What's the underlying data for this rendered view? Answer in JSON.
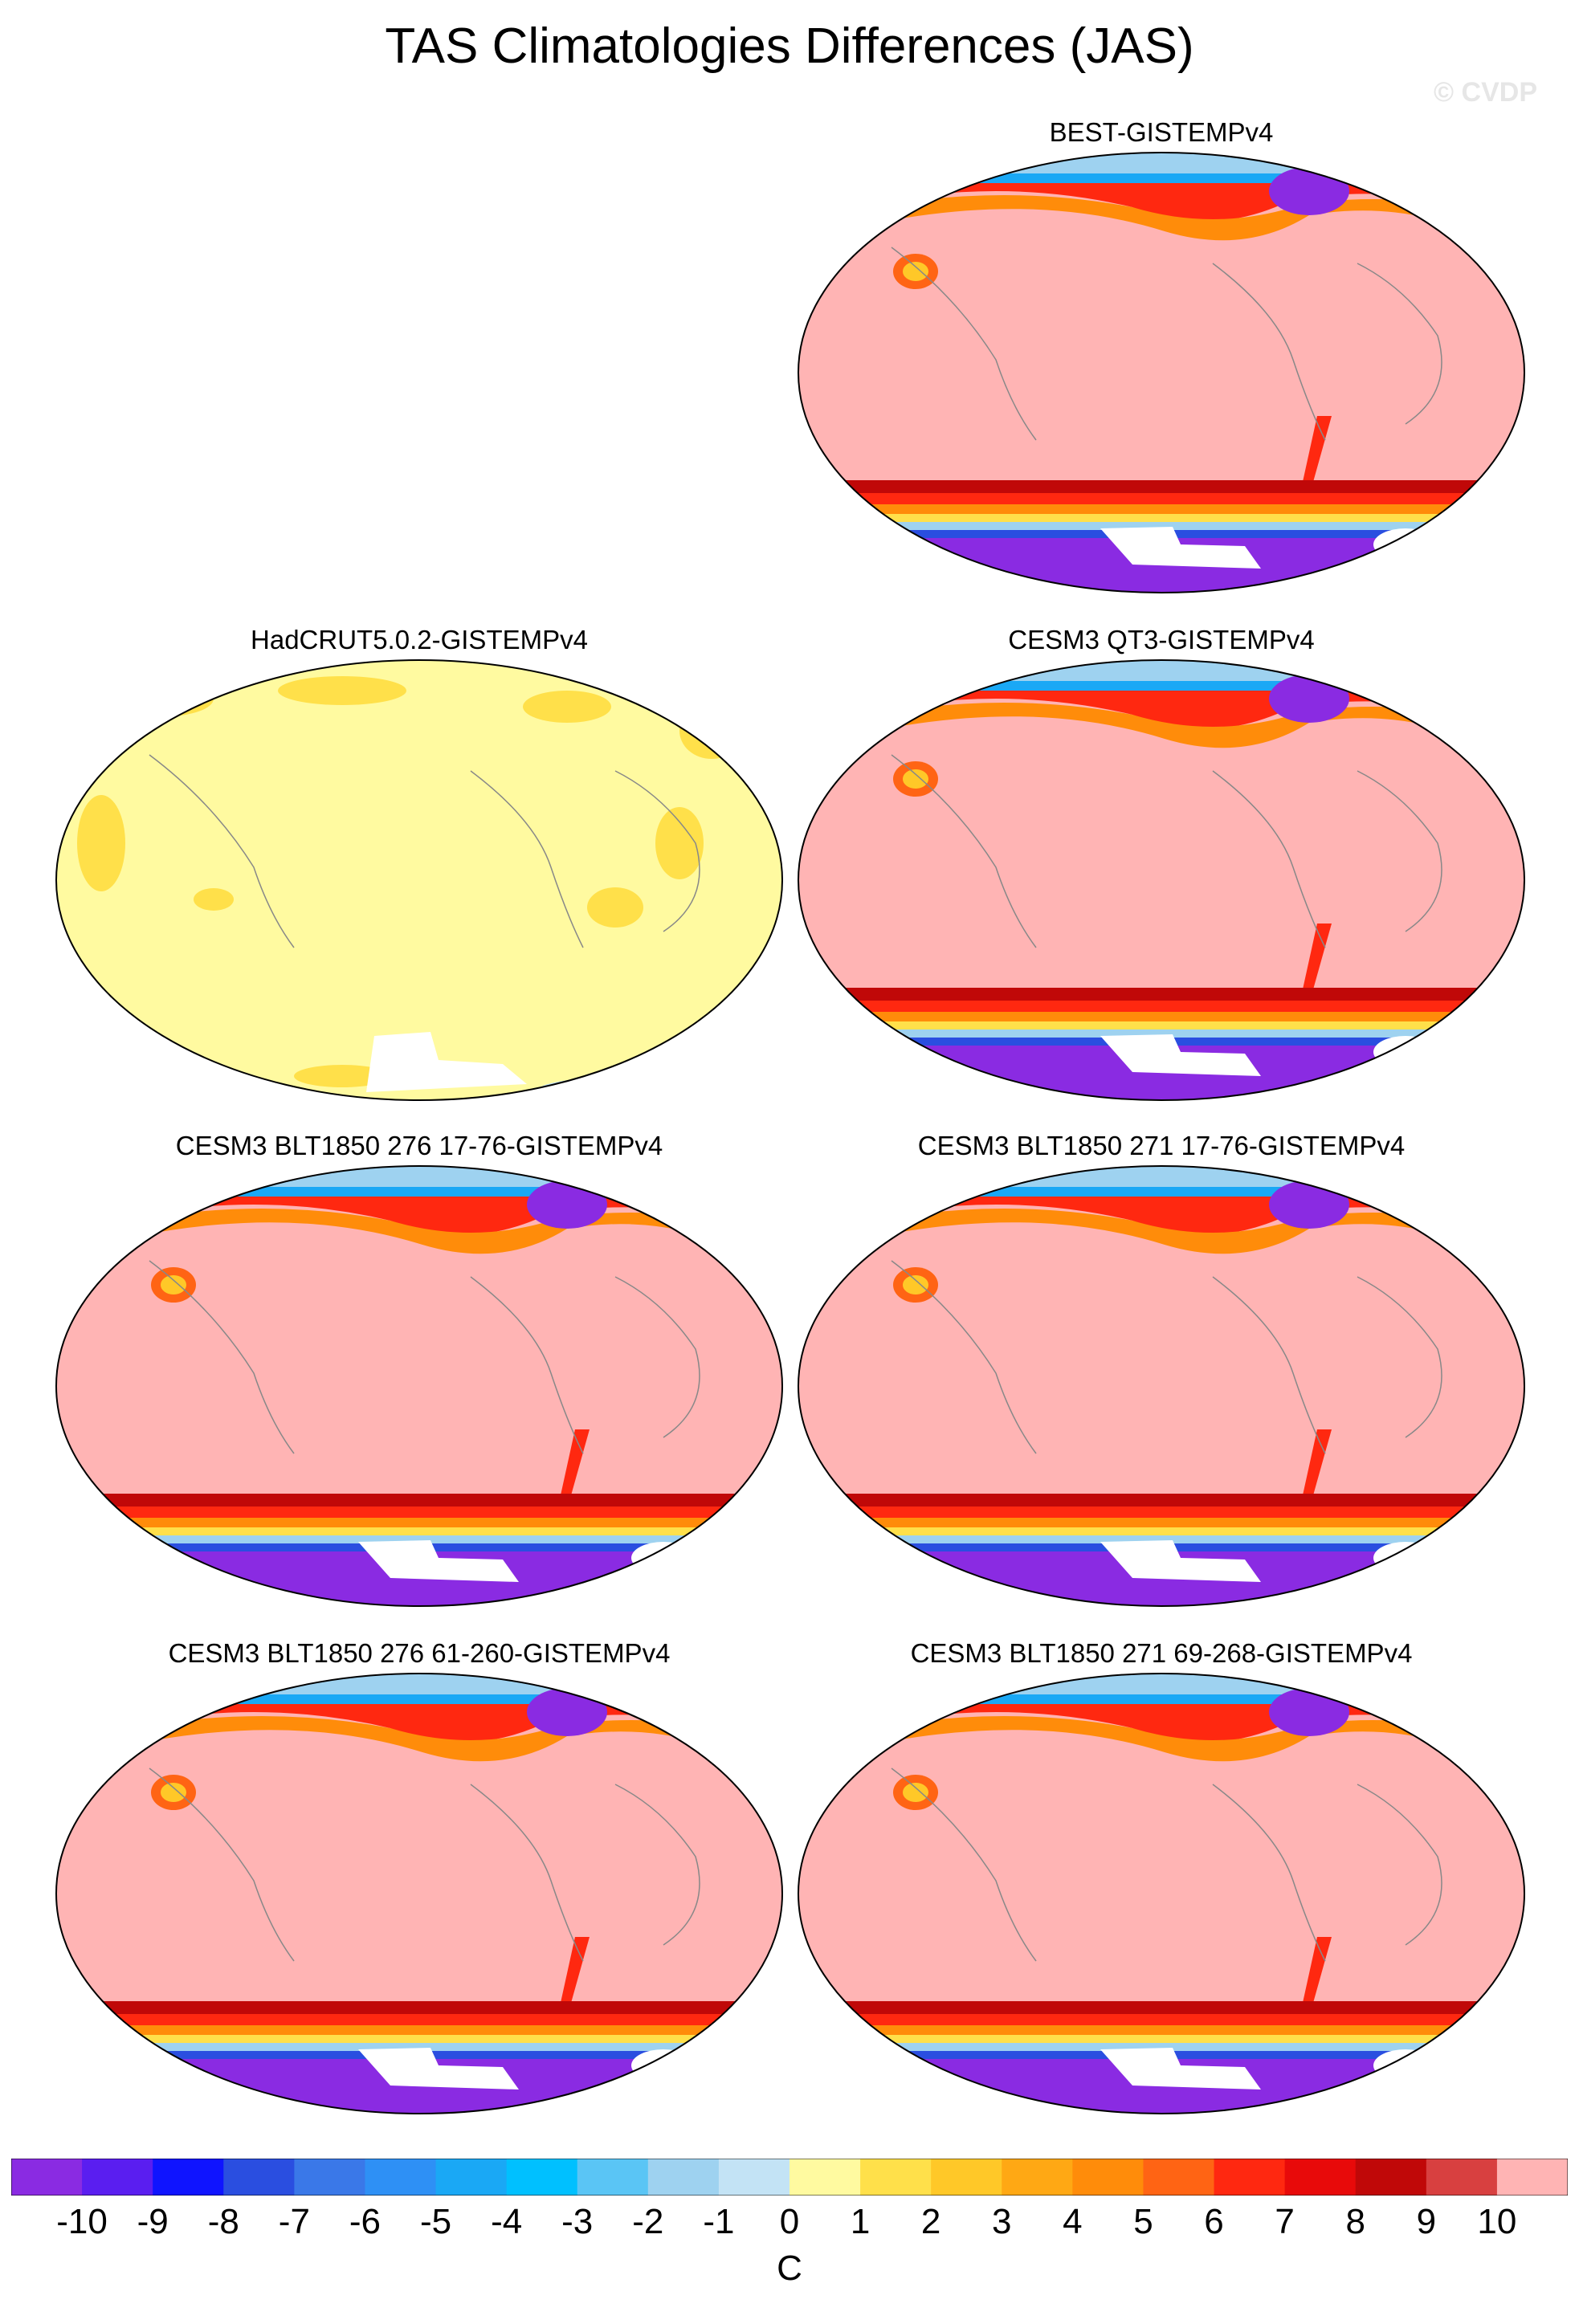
{
  "chart_data": {
    "type": "heatmap",
    "title": "TAS Climatologies Differences (JAS)",
    "watermark": "© CVDP",
    "units": "C",
    "colorbar": {
      "ticks": [
        "-10",
        "-9",
        "-8",
        "-7",
        "-6",
        "-5",
        "-4",
        "-3",
        "-2",
        "-1",
        "0",
        "1",
        "2",
        "3",
        "4",
        "5",
        "6",
        "7",
        "8",
        "9",
        "10"
      ],
      "colors": [
        "#8a2be2",
        "#5a1ef0",
        "#0f14ff",
        "#2a4ee0",
        "#3a78e8",
        "#2e90f5",
        "#1aa8f5",
        "#00c0ff",
        "#5ac5f5",
        "#9ed2f0",
        "#c3e3f5",
        "#fffaa0",
        "#ffe04a",
        "#ffc828",
        "#ffa814",
        "#ff8c0a",
        "#ff6414",
        "#ff2810",
        "#e80a0a",
        "#c00808",
        "#d84040",
        "#ffb4b4"
      ]
    },
    "panels": [
      {
        "title": "BEST-GISTEMPv4",
        "scheme": "model"
      },
      {
        "title": "HadCRUT5.0.2-GISTEMPv4",
        "scheme": "obs"
      },
      {
        "title": "CESM3 QT3-GISTEMPv4",
        "scheme": "model"
      },
      {
        "title": "CESM3 BLT1850 276 17-76-GISTEMPv4",
        "scheme": "model"
      },
      {
        "title": "CESM3 BLT1850 271 17-76-GISTEMPv4",
        "scheme": "model"
      },
      {
        "title": "CESM3 BLT1850 276 61-260-GISTEMPv4",
        "scheme": "model"
      },
      {
        "title": "CESM3 BLT1850 271 69-268-GISTEMPv4",
        "scheme": "model"
      }
    ]
  }
}
